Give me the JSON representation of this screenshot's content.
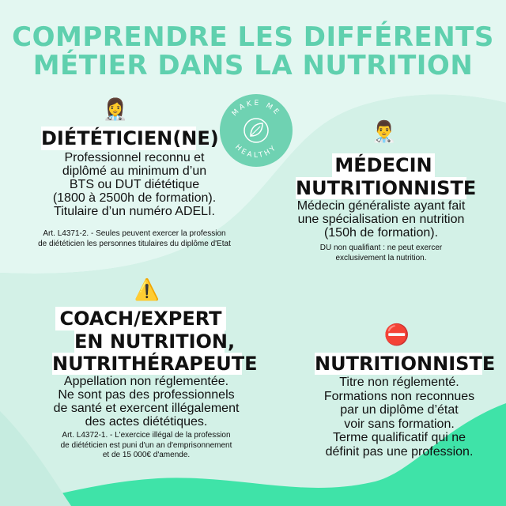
{
  "title": {
    "line1": "COMPRENDRE LES DIFFÉRENTS",
    "line2": "MÉTIER DANS LA NUTRITION"
  },
  "logo": {
    "brand_text": "MAKE ME HEALTHY",
    "icon": "leaf-icon"
  },
  "dieteticien": {
    "emoji": "👩‍⚕️",
    "heading": "DIÉTÉTICIEN(NE)",
    "lines": [
      "Professionnel reconnu et",
      "diplômé au minimum d’un",
      "BTS ou DUT diététique",
      "(1800 à 2500h de formation).",
      "Titulaire d’un numéro ADELI."
    ],
    "note_lines": [
      "Art. L4371-2. - Seules peuvent exercer la profession",
      "de diététicien les personnes titulaires du diplôme d'Etat"
    ]
  },
  "medecin": {
    "emoji": "👨‍⚕️",
    "heading_line1": "MÉDECIN",
    "heading_line2": "NUTRITIONNISTE",
    "lines": [
      "Médecin généraliste ayant fait",
      "une spécialisation en nutrition",
      "(150h de formation)."
    ],
    "note_lines": [
      "DU non qualifiant : ne peut exercer",
      "exclusivement la nutrition."
    ]
  },
  "coach": {
    "emoji": "⚠️",
    "heading_line1": "COACH/EXPERT",
    "heading_line2": "EN NUTRITION,",
    "heading_line3": "NUTRITHÉRAPEUTE",
    "lines": [
      "Appellation non réglementée.",
      "Ne sont pas des professionnels",
      "de santé et exercent illégalement",
      "des actes diététiques."
    ],
    "note_lines": [
      "Art. L4372-1. - L'exercice illégal de la profession",
      "de diététicien est puni d'un an d'emprisonnement",
      "et de 15 000€ d'amende."
    ]
  },
  "nutritionniste": {
    "emoji": "⛔",
    "heading": "NUTRITIONNISTE",
    "lines": [
      "Titre non réglementé.",
      "Formations non reconnues",
      "par un diplôme d’état",
      "voir sans formation.",
      "Terme qualificatif qui ne",
      "définit pas une profession."
    ]
  },
  "colors": {
    "title": "#5fd0ae",
    "background_light": "#e2f6f0",
    "background_mid": "#c3ebdf",
    "wave_green": "#3fe3a8",
    "logo_circle": "#6fd2b2"
  }
}
